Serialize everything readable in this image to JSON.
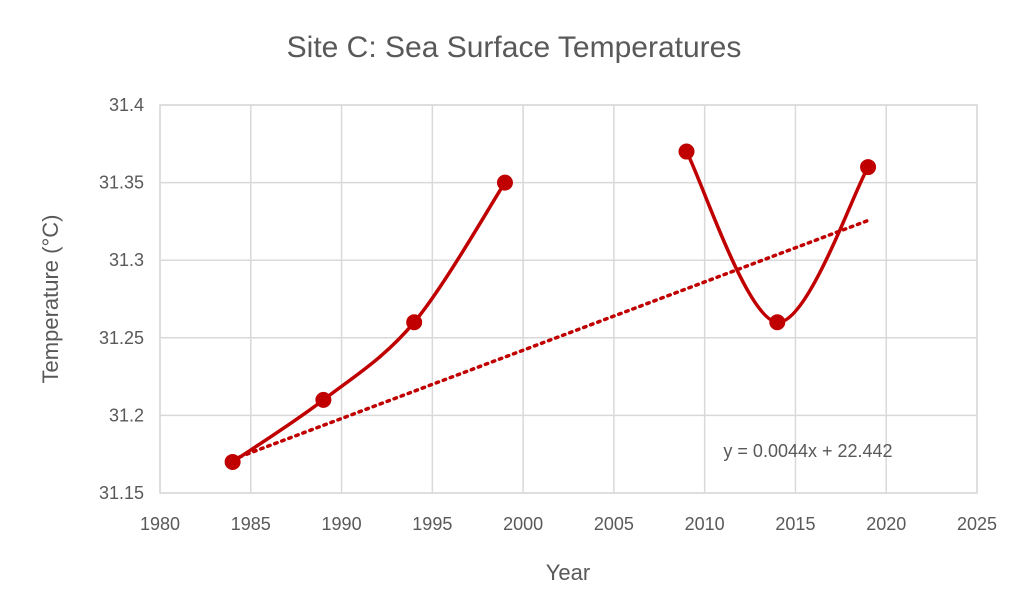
{
  "chart_data": {
    "type": "scatter",
    "title": "Site C: Sea Surface Temperatures",
    "xlabel": "Year",
    "ylabel": "Temperature (°C)",
    "xlim": [
      1980,
      2025
    ],
    "ylim": [
      31.15,
      31.4
    ],
    "x_ticks": [
      "1980",
      "1985",
      "1990",
      "1995",
      "2000",
      "2005",
      "2010",
      "2015",
      "2020",
      "2025"
    ],
    "y_ticks": [
      "31.15",
      "31.2",
      "31.25",
      "31.3",
      "31.35",
      "31.4"
    ],
    "grid": true,
    "color": "#c00000",
    "series": [
      {
        "segments": [
          [
            {
              "x": 1984,
              "y": 31.17
            },
            {
              "x": 1989,
              "y": 31.21
            },
            {
              "x": 1994,
              "y": 31.26
            },
            {
              "x": 1999,
              "y": 31.35
            }
          ],
          [
            {
              "x": 2009,
              "y": 31.37
            },
            {
              "x": 2014,
              "y": 31.26
            },
            {
              "x": 2019,
              "y": 31.36
            }
          ]
        ]
      }
    ],
    "trendline": {
      "equation": "y = 0.0044x + 22.442",
      "slope": 0.0044,
      "intercept": 22.442,
      "x_range": [
        1984,
        2019
      ],
      "style": "dotted"
    }
  }
}
